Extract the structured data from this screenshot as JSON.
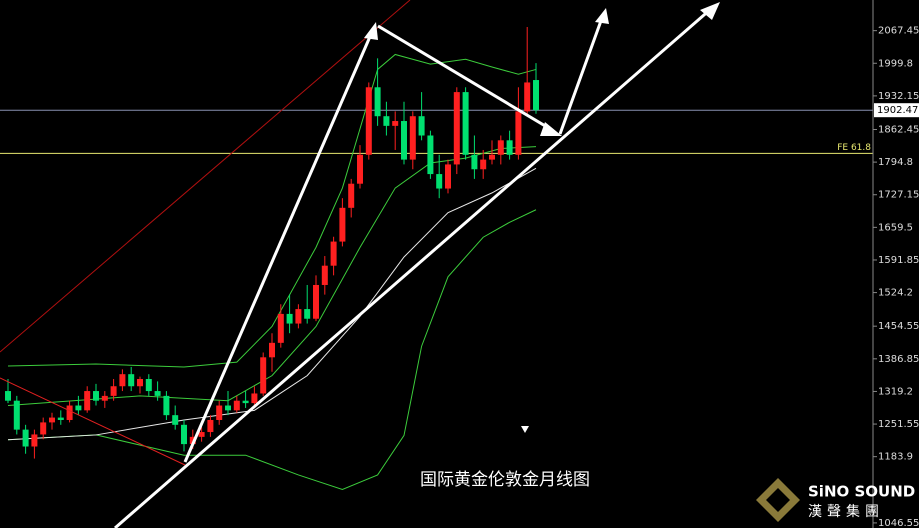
{
  "chart_data": {
    "type": "candlestick",
    "title": "国际黄金伦敦金月线图",
    "ylim": [
      1036,
      2131
    ],
    "yticks": [
      2067.45,
      1999.8,
      1932.15,
      1862.45,
      1794.8,
      1727.15,
      1659.5,
      1591.85,
      1524.2,
      1454.55,
      1386.85,
      1319.2,
      1251.55,
      1183.9,
      1046.55
    ],
    "up_color": "#ff2020",
    "down_color": "#00e070",
    "current_price": {
      "value": 1902.47,
      "color": "#ffffff"
    },
    "reference_line": {
      "label": "FE 61.8",
      "value": 1813,
      "color": "#e8e870"
    },
    "open": [
      1320,
      1300,
      1240,
      1205,
      1230,
      1255,
      1265,
      1260,
      1290,
      1280,
      1320,
      1300,
      1310,
      1330,
      1355,
      1330,
      1345,
      1320,
      1310,
      1270,
      1250,
      1210,
      1225,
      1235,
      1260,
      1290,
      1280,
      1300,
      1295,
      1315,
      1390,
      1420,
      1480,
      1460,
      1490,
      1470,
      1540,
      1580,
      1630,
      1700,
      1750,
      1810,
      1950,
      1890,
      1870,
      1880,
      1800,
      1890,
      1850,
      1770,
      1740,
      1790,
      1940,
      1810,
      1780,
      1800,
      1810,
      1840,
      1810,
      1900,
      1965
    ],
    "high": [
      1345,
      1310,
      1250,
      1240,
      1265,
      1275,
      1280,
      1300,
      1310,
      1330,
      1335,
      1320,
      1345,
      1365,
      1370,
      1350,
      1355,
      1340,
      1320,
      1290,
      1260,
      1240,
      1245,
      1270,
      1300,
      1320,
      1310,
      1320,
      1330,
      1400,
      1440,
      1500,
      1520,
      1500,
      1540,
      1560,
      1600,
      1640,
      1720,
      1760,
      1830,
      1960,
      2010,
      1920,
      1900,
      1920,
      1900,
      1940,
      1860,
      1810,
      1800,
      1950,
      1950,
      1850,
      1820,
      1840,
      1850,
      1860,
      1950,
      2075,
      2000
    ],
    "low": [
      1295,
      1230,
      1190,
      1180,
      1220,
      1240,
      1250,
      1255,
      1270,
      1275,
      1290,
      1285,
      1300,
      1320,
      1320,
      1315,
      1310,
      1300,
      1260,
      1240,
      1195,
      1200,
      1215,
      1225,
      1250,
      1270,
      1275,
      1285,
      1290,
      1310,
      1360,
      1410,
      1440,
      1450,
      1460,
      1465,
      1520,
      1560,
      1620,
      1680,
      1740,
      1800,
      1870,
      1850,
      1820,
      1790,
      1780,
      1840,
      1760,
      1720,
      1730,
      1770,
      1800,
      1760,
      1760,
      1790,
      1790,
      1800,
      1800,
      1890,
      1895
    ],
    "close": [
      1300,
      1240,
      1205,
      1230,
      1255,
      1265,
      1260,
      1290,
      1280,
      1320,
      1300,
      1310,
      1330,
      1355,
      1330,
      1345,
      1320,
      1310,
      1270,
      1250,
      1210,
      1225,
      1235,
      1260,
      1290,
      1280,
      1300,
      1295,
      1315,
      1390,
      1420,
      1480,
      1460,
      1490,
      1470,
      1540,
      1580,
      1630,
      1700,
      1750,
      1810,
      1950,
      1890,
      1870,
      1880,
      1800,
      1890,
      1850,
      1770,
      1740,
      1790,
      1940,
      1810,
      1780,
      1800,
      1810,
      1840,
      1810,
      1900,
      1960,
      1902.47
    ],
    "lines": [
      {
        "color": "#3ccc3c",
        "x": [
          0,
          10,
          20,
          26,
          30,
          35,
          38,
          40,
          42,
          44,
          48,
          52,
          55,
          58,
          60
        ],
        "values": [
          1372,
          1376,
          1370,
          1380,
          1454,
          1618,
          1741,
          1864,
          1987,
          2018,
          1998,
          2008,
          1992,
          1977,
          1987
        ]
      },
      {
        "color": "#3ccc3c",
        "x": [
          0,
          15,
          25,
          30,
          35,
          40,
          44,
          48,
          52,
          56,
          60
        ],
        "values": [
          1290,
          1310,
          1300,
          1352,
          1454,
          1618,
          1741,
          1793,
          1803,
          1823,
          1827
        ]
      },
      {
        "color": "#3ccc3c",
        "x": [
          0,
          10,
          20,
          27,
          33,
          38,
          42,
          45,
          47,
          50,
          54,
          57,
          60
        ],
        "values": [
          1219,
          1229,
          1187,
          1187,
          1146,
          1116,
          1146,
          1228,
          1413,
          1557,
          1639,
          1670,
          1696
        ]
      },
      {
        "color": "#e8e8e8",
        "x": [
          0,
          10,
          20,
          28,
          34,
          40,
          45,
          50,
          55,
          60
        ],
        "values": [
          1219,
          1229,
          1260,
          1280,
          1352,
          1475,
          1598,
          1690,
          1731,
          1782
        ]
      }
    ]
  },
  "logo": {
    "name": "SiNO SOUND",
    "subtitle": "漢聲集團"
  }
}
